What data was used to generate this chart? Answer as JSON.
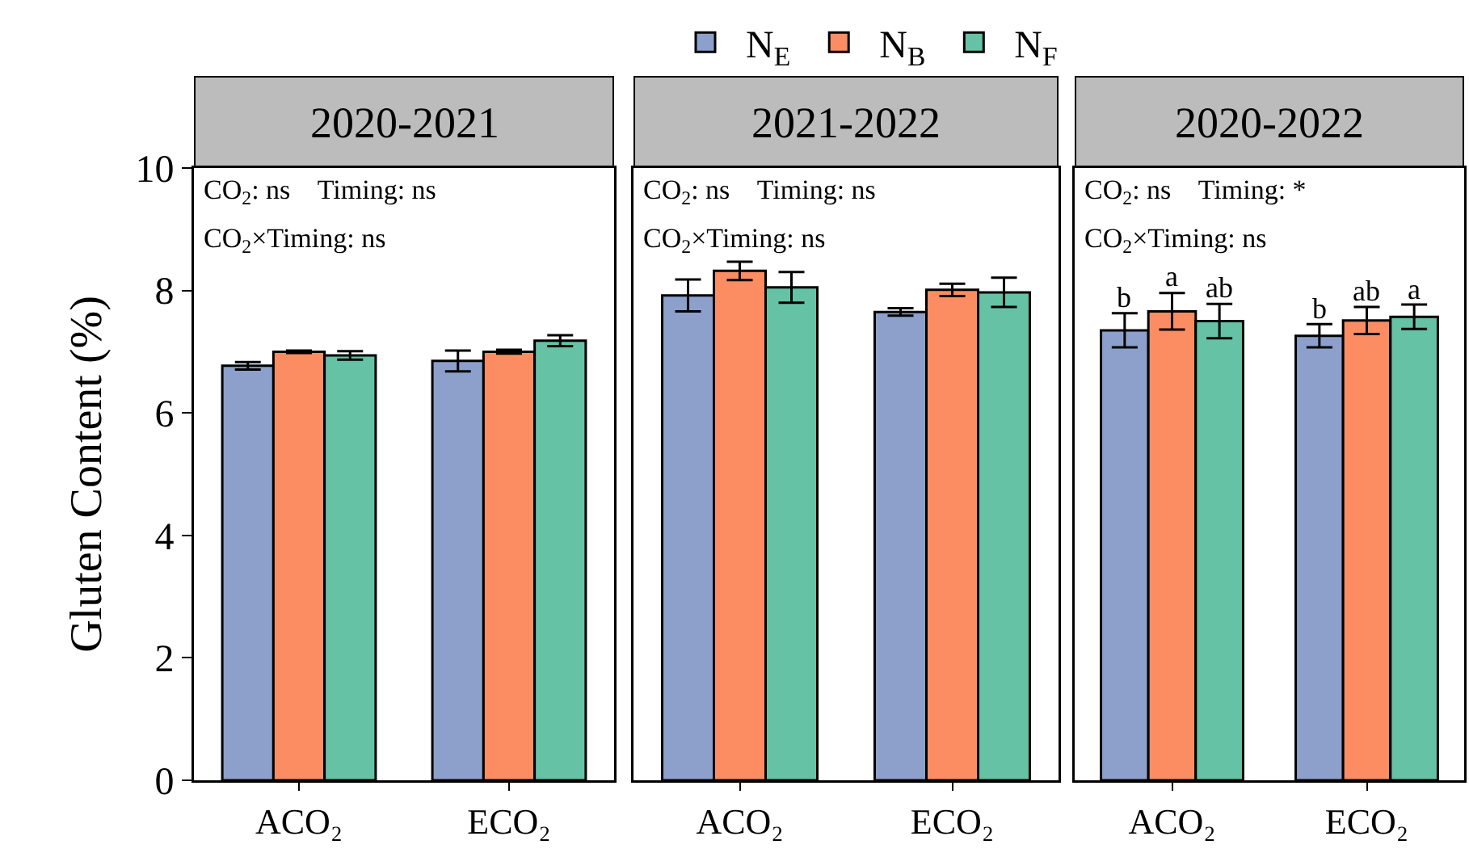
{
  "chart_data": [
    {
      "type": "bar",
      "title": "2020-2021",
      "ylabel": "Gluten Content (%)",
      "categories": [
        "ACO₂",
        "ECO₂"
      ],
      "ylim": [
        0,
        10
      ],
      "yticks": [
        0,
        2,
        4,
        6,
        8,
        10
      ],
      "grid": false,
      "legend": "top",
      "annotations": [
        "CO$_{2}$: ns    Timing: ns",
        "CO$_{2}$×Timing: ns"
      ],
      "series": [
        {
          "name": "N$_{E}$",
          "color": "#8da0cb",
          "values": [
            6.77,
            6.85
          ],
          "errors": [
            0.06,
            0.17
          ]
        },
        {
          "name": "N$_{B}$",
          "color": "#fc8d62",
          "values": [
            7.0,
            7.0
          ],
          "errors": [
            0.02,
            0.03
          ]
        },
        {
          "name": "N$_{F}$",
          "color": "#66c2a5",
          "values": [
            6.94,
            7.18
          ],
          "errors": [
            0.07,
            0.09
          ]
        }
      ]
    },
    {
      "type": "bar",
      "title": "2021-2022",
      "categories": [
        "ACO₂",
        "ECO₂"
      ],
      "ylim": [
        0,
        10
      ],
      "tick_labels": "x",
      "grid": false,
      "annotations": [
        "CO$_{2}$: ns    Timing: ns",
        "CO$_{2}$×Timing: ns"
      ],
      "series": [
        {
          "color": "#8da0cb",
          "values": [
            7.92,
            7.65
          ],
          "errors": [
            0.26,
            0.06
          ]
        },
        {
          "color": "#fc8d62",
          "values": [
            8.32,
            8.01
          ],
          "errors": [
            0.15,
            0.1
          ]
        },
        {
          "color": "#66c2a5",
          "values": [
            8.05,
            7.97
          ],
          "errors": [
            0.25,
            0.24
          ]
        }
      ]
    },
    {
      "type": "bar",
      "title": "2020-2022",
      "categories": [
        "ACO₂",
        "ECO₂"
      ],
      "ylim": [
        0,
        10
      ],
      "tick_labels": "x",
      "grid": false,
      "annotations": [
        "CO$_{2}$: ns    Timing: *",
        "CO$_{2}$×Timing: ns"
      ],
      "series": [
        {
          "color": "#8da0cb",
          "values": [
            7.35,
            7.26
          ],
          "errors": [
            0.28,
            0.19
          ],
          "value_labels": [
            "b",
            "b"
          ]
        },
        {
          "color": "#fc8d62",
          "values": [
            7.66,
            7.51
          ],
          "errors": [
            0.3,
            0.22
          ],
          "value_labels": [
            "a",
            "ab"
          ]
        },
        {
          "color": "#66c2a5",
          "values": [
            7.5,
            7.57
          ],
          "errors": [
            0.28,
            0.2
          ],
          "value_labels": [
            "ab",
            "a"
          ]
        }
      ]
    }
  ]
}
